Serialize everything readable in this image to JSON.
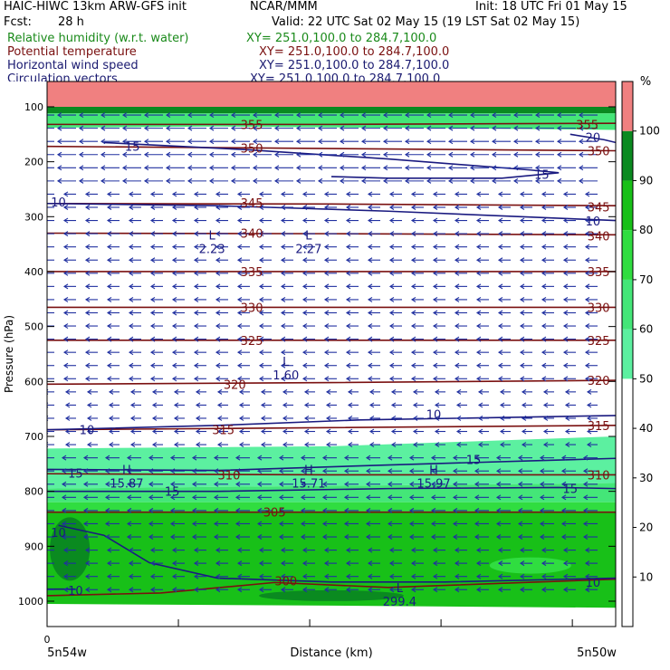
{
  "header": {
    "model": "HAIC-HIWC 13km ARW-GFS init",
    "org": "NCAR/MMM",
    "init": "Init: 18 UTC Fri 01 May 15",
    "fcst_label": "Fcst:",
    "fcst_value": "28 h",
    "valid": "Valid: 22 UTC Sat 02 May 15 (19 LST Sat 02 May 15)"
  },
  "fields": [
    {
      "name": "Relative humidity (w.r.t. water)",
      "xy": "XY= 251.0,100.0 to 284.7,100.0",
      "color": "#1a8a1a"
    },
    {
      "name": "Potential temperature",
      "xy": "XY= 251.0,100.0 to 284.7,100.0",
      "color": "#7a1010"
    },
    {
      "name": "Horizontal wind speed",
      "xy": "XY= 251.0,100.0 to 284.7,100.0",
      "color": "#1a1a70"
    },
    {
      "name": "Circulation vectors",
      "xy": "XY= 251.0,100.0 to 284.7,100.0",
      "color": "#1a1a70"
    }
  ],
  "colors": {
    "theta": "#7a1010",
    "wind": "#1a1a80",
    "vector": "#2030a0"
  },
  "chart_data": {
    "type": "cross-section",
    "xlabel": "Distance (km)",
    "ylabel": "Pressure (hPa)",
    "x_start_tick": "0",
    "x_left_label": "5n54w",
    "x_right_label": "5n50w",
    "y_ticks": [
      100,
      200,
      300,
      400,
      500,
      600,
      700,
      800,
      900,
      1000
    ],
    "ylim": [
      1050,
      50
    ],
    "colorbar": {
      "unit": "%",
      "ticks": [
        10,
        20,
        30,
        40,
        50,
        60,
        70,
        80,
        90,
        100
      ],
      "bins": [
        {
          "from": 0,
          "to": 50,
          "color": "#ffffff"
        },
        {
          "from": 50,
          "to": 60,
          "color": "#5cf0a0"
        },
        {
          "from": 60,
          "to": 70,
          "color": "#44e678"
        },
        {
          "from": 70,
          "to": 80,
          "color": "#30dd40"
        },
        {
          "from": 80,
          "to": 90,
          "color": "#18c018"
        },
        {
          "from": 90,
          "to": 100,
          "color": "#0a8a20"
        },
        {
          "from": 100,
          "to": 110,
          "color": "#f08080"
        }
      ]
    },
    "theta_labels": [
      {
        "text": "355",
        "x": 0.36,
        "p": 132
      },
      {
        "text": "355",
        "x": 0.95,
        "p": 132
      },
      {
        "text": "350",
        "x": 0.36,
        "p": 175
      },
      {
        "text": "350",
        "x": 0.97,
        "p": 180
      },
      {
        "text": "345",
        "x": 0.36,
        "p": 275
      },
      {
        "text": "345",
        "x": 0.97,
        "p": 282
      },
      {
        "text": "340",
        "x": 0.36,
        "p": 330
      },
      {
        "text": "340",
        "x": 0.97,
        "p": 335
      },
      {
        "text": "335",
        "x": 0.36,
        "p": 400
      },
      {
        "text": "335",
        "x": 0.97,
        "p": 400
      },
      {
        "text": "330",
        "x": 0.36,
        "p": 465
      },
      {
        "text": "330",
        "x": 0.97,
        "p": 465
      },
      {
        "text": "325",
        "x": 0.36,
        "p": 525
      },
      {
        "text": "325",
        "x": 0.97,
        "p": 525
      },
      {
        "text": "320",
        "x": 0.33,
        "p": 605
      },
      {
        "text": "320",
        "x": 0.97,
        "p": 598
      },
      {
        "text": "315",
        "x": 0.31,
        "p": 688
      },
      {
        "text": "315",
        "x": 0.97,
        "p": 680
      },
      {
        "text": "310",
        "x": 0.32,
        "p": 770
      },
      {
        "text": "310",
        "x": 0.97,
        "p": 770
      },
      {
        "text": "305",
        "x": 0.4,
        "p": 838
      },
      {
        "text": "300",
        "x": 0.42,
        "p": 963
      }
    ],
    "wind_labels": [
      {
        "text": "15",
        "x": 0.15,
        "p": 172
      },
      {
        "text": "15",
        "x": 0.87,
        "p": 223
      },
      {
        "text": "20",
        "x": 0.96,
        "p": 155
      },
      {
        "text": "10",
        "x": 0.02,
        "p": 273
      },
      {
        "text": "10",
        "x": 0.96,
        "p": 308
      },
      {
        "text": "10",
        "x": 0.07,
        "p": 688
      },
      {
        "text": "10",
        "x": 0.68,
        "p": 660
      },
      {
        "text": "15",
        "x": 0.05,
        "p": 767
      },
      {
        "text": "15",
        "x": 0.75,
        "p": 742
      },
      {
        "text": "15",
        "x": 0.22,
        "p": 800
      },
      {
        "text": "15",
        "x": 0.92,
        "p": 795
      },
      {
        "text": "10",
        "x": 0.02,
        "p": 875
      },
      {
        "text": "10",
        "x": 0.05,
        "p": 980
      },
      {
        "text": "10",
        "x": 0.96,
        "p": 965
      }
    ],
    "extrema": [
      {
        "type": "L",
        "value": "2.23",
        "x": 0.29,
        "p": 345
      },
      {
        "type": "L",
        "value": "2.27",
        "x": 0.46,
        "p": 345
      },
      {
        "type": "L",
        "value": "1.60",
        "x": 0.42,
        "p": 575
      },
      {
        "type": "H",
        "value": "15.87",
        "x": 0.14,
        "p": 772
      },
      {
        "type": "H",
        "value": "15.71",
        "x": 0.46,
        "p": 772
      },
      {
        "type": "H",
        "value": "15.97",
        "x": 0.68,
        "p": 772
      },
      {
        "type": "L",
        "value": "299.4",
        "x": 0.62,
        "p": 987
      }
    ]
  }
}
